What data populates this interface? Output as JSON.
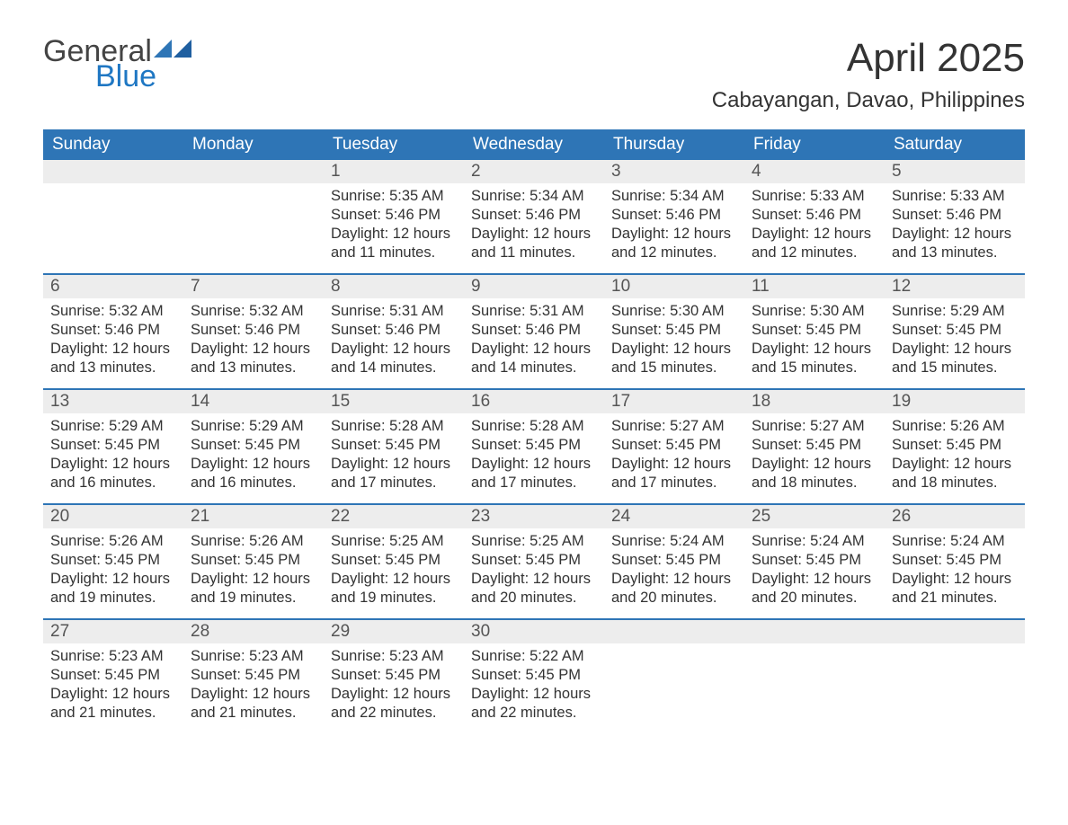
{
  "brand": {
    "word1": "General",
    "word2": "Blue",
    "accent_color": "#1f77c3"
  },
  "title": "April 2025",
  "location": "Cabayangan, Davao, Philippines",
  "colors": {
    "header_bg": "#2e75b6",
    "header_text": "#ffffff",
    "daynum_bg": "#ededed",
    "row_divider": "#2e75b6",
    "body_text": "#333333"
  },
  "typography": {
    "title_fontsize_pt": 33,
    "location_fontsize_pt": 18,
    "dow_fontsize_pt": 14,
    "daynum_fontsize_pt": 14,
    "body_fontsize_pt": 12
  },
  "layout": {
    "columns": 7,
    "rows": 5,
    "first_weekday": "Sunday"
  },
  "days_of_week": [
    "Sunday",
    "Monday",
    "Tuesday",
    "Wednesday",
    "Thursday",
    "Friday",
    "Saturday"
  ],
  "weeks": [
    [
      null,
      null,
      {
        "n": "1",
        "sunrise": "Sunrise: 5:35 AM",
        "sunset": "Sunset: 5:46 PM",
        "daylight1": "Daylight: 12 hours",
        "daylight2": "and 11 minutes."
      },
      {
        "n": "2",
        "sunrise": "Sunrise: 5:34 AM",
        "sunset": "Sunset: 5:46 PM",
        "daylight1": "Daylight: 12 hours",
        "daylight2": "and 11 minutes."
      },
      {
        "n": "3",
        "sunrise": "Sunrise: 5:34 AM",
        "sunset": "Sunset: 5:46 PM",
        "daylight1": "Daylight: 12 hours",
        "daylight2": "and 12 minutes."
      },
      {
        "n": "4",
        "sunrise": "Sunrise: 5:33 AM",
        "sunset": "Sunset: 5:46 PM",
        "daylight1": "Daylight: 12 hours",
        "daylight2": "and 12 minutes."
      },
      {
        "n": "5",
        "sunrise": "Sunrise: 5:33 AM",
        "sunset": "Sunset: 5:46 PM",
        "daylight1": "Daylight: 12 hours",
        "daylight2": "and 13 minutes."
      }
    ],
    [
      {
        "n": "6",
        "sunrise": "Sunrise: 5:32 AM",
        "sunset": "Sunset: 5:46 PM",
        "daylight1": "Daylight: 12 hours",
        "daylight2": "and 13 minutes."
      },
      {
        "n": "7",
        "sunrise": "Sunrise: 5:32 AM",
        "sunset": "Sunset: 5:46 PM",
        "daylight1": "Daylight: 12 hours",
        "daylight2": "and 13 minutes."
      },
      {
        "n": "8",
        "sunrise": "Sunrise: 5:31 AM",
        "sunset": "Sunset: 5:46 PM",
        "daylight1": "Daylight: 12 hours",
        "daylight2": "and 14 minutes."
      },
      {
        "n": "9",
        "sunrise": "Sunrise: 5:31 AM",
        "sunset": "Sunset: 5:46 PM",
        "daylight1": "Daylight: 12 hours",
        "daylight2": "and 14 minutes."
      },
      {
        "n": "10",
        "sunrise": "Sunrise: 5:30 AM",
        "sunset": "Sunset: 5:45 PM",
        "daylight1": "Daylight: 12 hours",
        "daylight2": "and 15 minutes."
      },
      {
        "n": "11",
        "sunrise": "Sunrise: 5:30 AM",
        "sunset": "Sunset: 5:45 PM",
        "daylight1": "Daylight: 12 hours",
        "daylight2": "and 15 minutes."
      },
      {
        "n": "12",
        "sunrise": "Sunrise: 5:29 AM",
        "sunset": "Sunset: 5:45 PM",
        "daylight1": "Daylight: 12 hours",
        "daylight2": "and 15 minutes."
      }
    ],
    [
      {
        "n": "13",
        "sunrise": "Sunrise: 5:29 AM",
        "sunset": "Sunset: 5:45 PM",
        "daylight1": "Daylight: 12 hours",
        "daylight2": "and 16 minutes."
      },
      {
        "n": "14",
        "sunrise": "Sunrise: 5:29 AM",
        "sunset": "Sunset: 5:45 PM",
        "daylight1": "Daylight: 12 hours",
        "daylight2": "and 16 minutes."
      },
      {
        "n": "15",
        "sunrise": "Sunrise: 5:28 AM",
        "sunset": "Sunset: 5:45 PM",
        "daylight1": "Daylight: 12 hours",
        "daylight2": "and 17 minutes."
      },
      {
        "n": "16",
        "sunrise": "Sunrise: 5:28 AM",
        "sunset": "Sunset: 5:45 PM",
        "daylight1": "Daylight: 12 hours",
        "daylight2": "and 17 minutes."
      },
      {
        "n": "17",
        "sunrise": "Sunrise: 5:27 AM",
        "sunset": "Sunset: 5:45 PM",
        "daylight1": "Daylight: 12 hours",
        "daylight2": "and 17 minutes."
      },
      {
        "n": "18",
        "sunrise": "Sunrise: 5:27 AM",
        "sunset": "Sunset: 5:45 PM",
        "daylight1": "Daylight: 12 hours",
        "daylight2": "and 18 minutes."
      },
      {
        "n": "19",
        "sunrise": "Sunrise: 5:26 AM",
        "sunset": "Sunset: 5:45 PM",
        "daylight1": "Daylight: 12 hours",
        "daylight2": "and 18 minutes."
      }
    ],
    [
      {
        "n": "20",
        "sunrise": "Sunrise: 5:26 AM",
        "sunset": "Sunset: 5:45 PM",
        "daylight1": "Daylight: 12 hours",
        "daylight2": "and 19 minutes."
      },
      {
        "n": "21",
        "sunrise": "Sunrise: 5:26 AM",
        "sunset": "Sunset: 5:45 PM",
        "daylight1": "Daylight: 12 hours",
        "daylight2": "and 19 minutes."
      },
      {
        "n": "22",
        "sunrise": "Sunrise: 5:25 AM",
        "sunset": "Sunset: 5:45 PM",
        "daylight1": "Daylight: 12 hours",
        "daylight2": "and 19 minutes."
      },
      {
        "n": "23",
        "sunrise": "Sunrise: 5:25 AM",
        "sunset": "Sunset: 5:45 PM",
        "daylight1": "Daylight: 12 hours",
        "daylight2": "and 20 minutes."
      },
      {
        "n": "24",
        "sunrise": "Sunrise: 5:24 AM",
        "sunset": "Sunset: 5:45 PM",
        "daylight1": "Daylight: 12 hours",
        "daylight2": "and 20 minutes."
      },
      {
        "n": "25",
        "sunrise": "Sunrise: 5:24 AM",
        "sunset": "Sunset: 5:45 PM",
        "daylight1": "Daylight: 12 hours",
        "daylight2": "and 20 minutes."
      },
      {
        "n": "26",
        "sunrise": "Sunrise: 5:24 AM",
        "sunset": "Sunset: 5:45 PM",
        "daylight1": "Daylight: 12 hours",
        "daylight2": "and 21 minutes."
      }
    ],
    [
      {
        "n": "27",
        "sunrise": "Sunrise: 5:23 AM",
        "sunset": "Sunset: 5:45 PM",
        "daylight1": "Daylight: 12 hours",
        "daylight2": "and 21 minutes."
      },
      {
        "n": "28",
        "sunrise": "Sunrise: 5:23 AM",
        "sunset": "Sunset: 5:45 PM",
        "daylight1": "Daylight: 12 hours",
        "daylight2": "and 21 minutes."
      },
      {
        "n": "29",
        "sunrise": "Sunrise: 5:23 AM",
        "sunset": "Sunset: 5:45 PM",
        "daylight1": "Daylight: 12 hours",
        "daylight2": "and 22 minutes."
      },
      {
        "n": "30",
        "sunrise": "Sunrise: 5:22 AM",
        "sunset": "Sunset: 5:45 PM",
        "daylight1": "Daylight: 12 hours",
        "daylight2": "and 22 minutes."
      },
      null,
      null,
      null
    ]
  ]
}
